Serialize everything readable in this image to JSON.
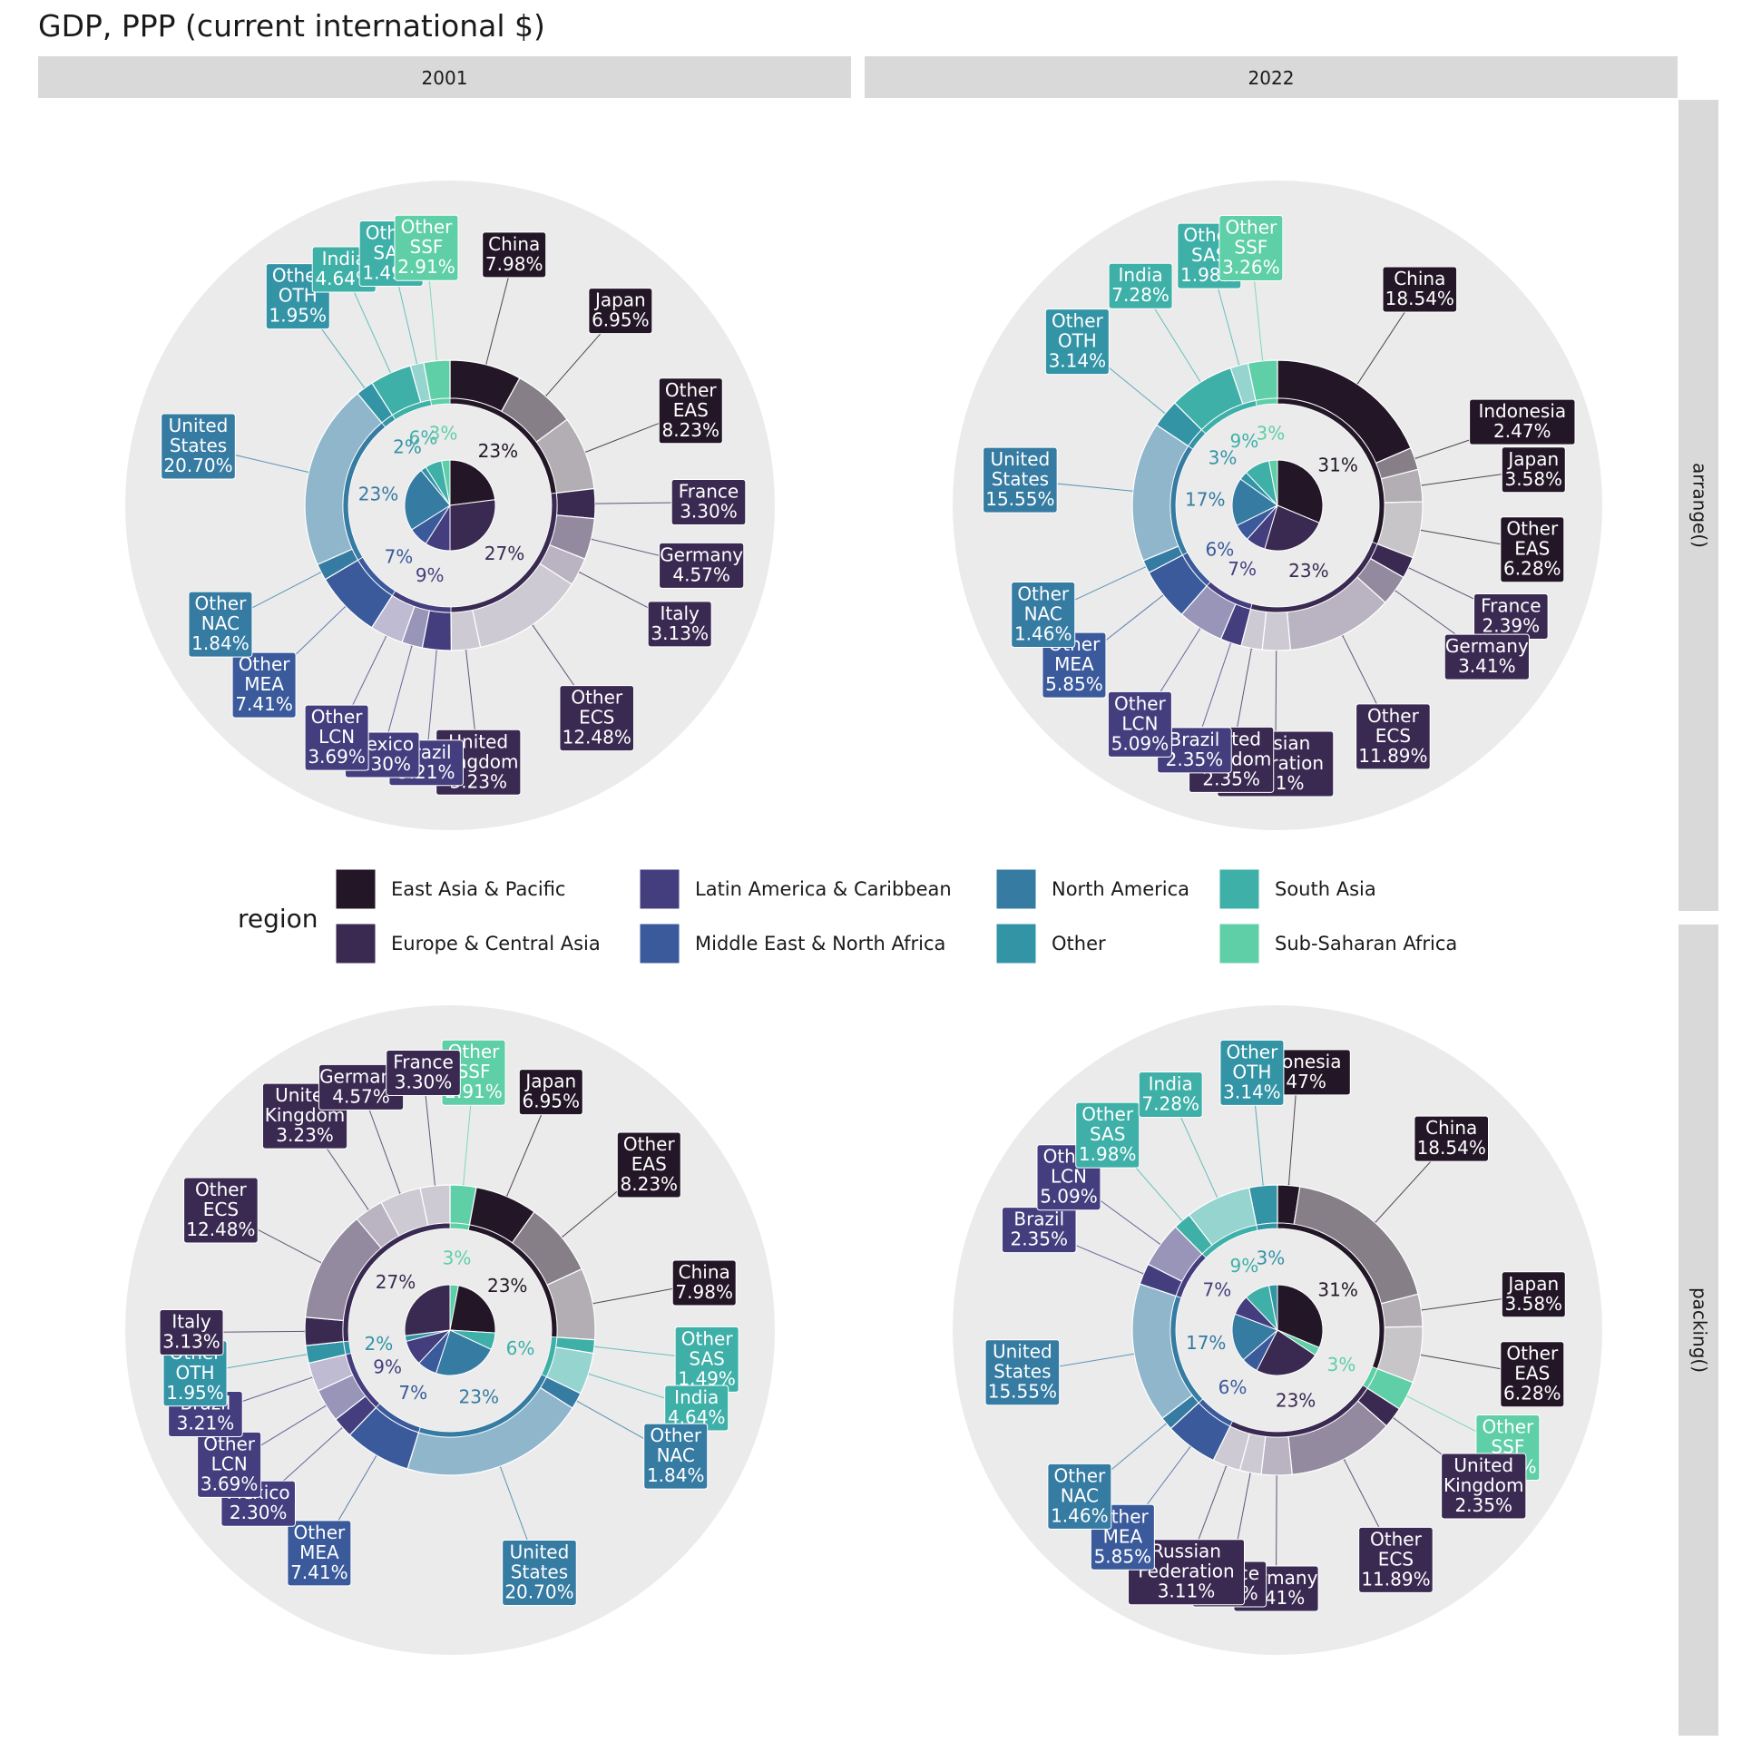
{
  "title": "GDP, PPP (current international $)",
  "legend": {
    "title": "region",
    "entries": [
      {
        "key": "EAS",
        "label": "East Asia & Pacific",
        "color": "#231727"
      },
      {
        "key": "ECS",
        "label": "Europe & Central Asia",
        "color": "#3a2a52"
      },
      {
        "key": "LCN",
        "label": "Latin America & Caribbean",
        "color": "#443e7f"
      },
      {
        "key": "MEA",
        "label": "Middle East & North Africa",
        "color": "#3a5a9b"
      },
      {
        "key": "NAC",
        "label": "North America",
        "color": "#357ba2"
      },
      {
        "key": "OTH",
        "label": "Other",
        "color": "#3394a6"
      },
      {
        "key": "SAS",
        "label": "South Asia",
        "color": "#3eb0a8"
      },
      {
        "key": "SSF",
        "label": "Sub-Saharan Africa",
        "color": "#5fcfa7"
      }
    ]
  },
  "strips": {
    "columns": [
      "2001",
      "2022"
    ],
    "rows": [
      "arrange()",
      "packing()"
    ]
  },
  "chart_data": [
    {
      "type": "pie",
      "year": "2001",
      "method": "arrange()",
      "inner": [
        {
          "region": "EAS",
          "pct": 23
        },
        {
          "region": "ECS",
          "pct": 27
        },
        {
          "region": "LCN",
          "pct": 9
        },
        {
          "region": "MEA",
          "pct": 7
        },
        {
          "region": "NAC",
          "pct": 23
        },
        {
          "region": "OTH",
          "pct": 2
        },
        {
          "region": "SAS",
          "pct": 6
        },
        {
          "region": "SSF",
          "pct": 3
        }
      ],
      "outer": [
        {
          "region": "EAS",
          "name": "China",
          "pct": 7.98
        },
        {
          "region": "EAS",
          "name": "Japan",
          "pct": 6.95
        },
        {
          "region": "EAS",
          "name": "Other EAS",
          "pct": 8.23
        },
        {
          "region": "ECS",
          "name": "France",
          "pct": 3.3
        },
        {
          "region": "ECS",
          "name": "Germany",
          "pct": 4.57
        },
        {
          "region": "ECS",
          "name": "Italy",
          "pct": 3.13
        },
        {
          "region": "ECS",
          "name": "Other ECS",
          "pct": 12.48
        },
        {
          "region": "ECS",
          "name": "United Kingdom",
          "pct": 3.23
        },
        {
          "region": "LCN",
          "name": "Brazil",
          "pct": 3.21
        },
        {
          "region": "LCN",
          "name": "Mexico",
          "pct": 2.3
        },
        {
          "region": "LCN",
          "name": "Other LCN",
          "pct": 3.69
        },
        {
          "region": "MEA",
          "name": "Other MEA",
          "pct": 7.41
        },
        {
          "region": "NAC",
          "name": "Other NAC",
          "pct": 1.84
        },
        {
          "region": "NAC",
          "name": "United States",
          "pct": 20.7
        },
        {
          "region": "OTH",
          "name": "Other OTH",
          "pct": 1.95
        },
        {
          "region": "SAS",
          "name": "India",
          "pct": 4.64
        },
        {
          "region": "SAS",
          "name": "Other SAS",
          "pct": 1.49
        },
        {
          "region": "SSF",
          "name": "Other SSF",
          "pct": 2.91
        }
      ]
    },
    {
      "type": "pie",
      "year": "2022",
      "method": "arrange()",
      "inner": [
        {
          "region": "EAS",
          "pct": 31
        },
        {
          "region": "ECS",
          "pct": 23
        },
        {
          "region": "LCN",
          "pct": 7
        },
        {
          "region": "MEA",
          "pct": 6
        },
        {
          "region": "NAC",
          "pct": 17
        },
        {
          "region": "OTH",
          "pct": 3
        },
        {
          "region": "SAS",
          "pct": 9
        },
        {
          "region": "SSF",
          "pct": 3
        }
      ],
      "outer": [
        {
          "region": "EAS",
          "name": "China",
          "pct": 18.54
        },
        {
          "region": "EAS",
          "name": "Indonesia",
          "pct": 2.47
        },
        {
          "region": "EAS",
          "name": "Japan",
          "pct": 3.58
        },
        {
          "region": "EAS",
          "name": "Other EAS",
          "pct": 6.28
        },
        {
          "region": "ECS",
          "name": "France",
          "pct": 2.39
        },
        {
          "region": "ECS",
          "name": "Germany",
          "pct": 3.41
        },
        {
          "region": "ECS",
          "name": "Other ECS",
          "pct": 11.89
        },
        {
          "region": "ECS",
          "name": "Russian Federation",
          "pct": 3.11
        },
        {
          "region": "ECS",
          "name": "United Kingdom",
          "pct": 2.35
        },
        {
          "region": "LCN",
          "name": "Brazil",
          "pct": 2.35
        },
        {
          "region": "LCN",
          "name": "Other LCN",
          "pct": 5.09
        },
        {
          "region": "MEA",
          "name": "Other MEA",
          "pct": 5.85
        },
        {
          "region": "NAC",
          "name": "Other NAC",
          "pct": 1.46
        },
        {
          "region": "NAC",
          "name": "United States",
          "pct": 15.55
        },
        {
          "region": "OTH",
          "name": "Other OTH",
          "pct": 3.14
        },
        {
          "region": "SAS",
          "name": "India",
          "pct": 7.28
        },
        {
          "region": "SAS",
          "name": "Other SAS",
          "pct": 1.98
        },
        {
          "region": "SSF",
          "name": "Other SSF",
          "pct": 3.26
        }
      ]
    },
    {
      "type": "pie",
      "year": "2001",
      "method": "packing()",
      "inner": [
        {
          "region": "EAS",
          "pct": 23
        },
        {
          "region": "ECS",
          "pct": 27
        },
        {
          "region": "LCN",
          "pct": 9
        },
        {
          "region": "MEA",
          "pct": 7
        },
        {
          "region": "NAC",
          "pct": 23
        },
        {
          "region": "OTH",
          "pct": 2
        },
        {
          "region": "SAS",
          "pct": 6
        },
        {
          "region": "SSF",
          "pct": 3
        }
      ],
      "outer": [
        {
          "region": "SSF",
          "name": "Other SSF",
          "pct": 2.91
        },
        {
          "region": "EAS",
          "name": "Japan",
          "pct": 6.95
        },
        {
          "region": "EAS",
          "name": "Other EAS",
          "pct": 8.23
        },
        {
          "region": "EAS",
          "name": "China",
          "pct": 7.98
        },
        {
          "region": "SAS",
          "name": "Other SAS",
          "pct": 1.49
        },
        {
          "region": "SAS",
          "name": "India",
          "pct": 4.64
        },
        {
          "region": "NAC",
          "name": "Other NAC",
          "pct": 1.84
        },
        {
          "region": "NAC",
          "name": "United States",
          "pct": 20.7
        },
        {
          "region": "MEA",
          "name": "Other MEA",
          "pct": 7.41
        },
        {
          "region": "LCN",
          "name": "Mexico",
          "pct": 2.3
        },
        {
          "region": "LCN",
          "name": "Other LCN",
          "pct": 3.69
        },
        {
          "region": "LCN",
          "name": "Brazil",
          "pct": 3.21
        },
        {
          "region": "OTH",
          "name": "Other OTH",
          "pct": 1.95
        },
        {
          "region": "ECS",
          "name": "Italy",
          "pct": 3.13
        },
        {
          "region": "ECS",
          "name": "Other ECS",
          "pct": 12.48
        },
        {
          "region": "ECS",
          "name": "United Kingdom",
          "pct": 3.23
        },
        {
          "region": "ECS",
          "name": "Germany",
          "pct": 4.57
        },
        {
          "region": "ECS",
          "name": "France",
          "pct": 3.3
        }
      ]
    },
    {
      "type": "pie",
      "year": "2022",
      "method": "packing()",
      "inner": [
        {
          "region": "EAS",
          "pct": 31
        },
        {
          "region": "ECS",
          "pct": 23
        },
        {
          "region": "LCN",
          "pct": 7
        },
        {
          "region": "MEA",
          "pct": 6
        },
        {
          "region": "NAC",
          "pct": 17
        },
        {
          "region": "OTH",
          "pct": 3
        },
        {
          "region": "SAS",
          "pct": 9
        },
        {
          "region": "SSF",
          "pct": 3
        }
      ],
      "outer": [
        {
          "region": "EAS",
          "name": "Indonesia",
          "pct": 2.47
        },
        {
          "region": "EAS",
          "name": "China",
          "pct": 18.54
        },
        {
          "region": "EAS",
          "name": "Japan",
          "pct": 3.58
        },
        {
          "region": "EAS",
          "name": "Other EAS",
          "pct": 6.28
        },
        {
          "region": "SSF",
          "name": "Other SSF",
          "pct": 3.26
        },
        {
          "region": "ECS",
          "name": "United Kingdom",
          "pct": 2.35
        },
        {
          "region": "ECS",
          "name": "Other ECS",
          "pct": 11.89
        },
        {
          "region": "ECS",
          "name": "Germany",
          "pct": 3.41
        },
        {
          "region": "ECS",
          "name": "France",
          "pct": 2.39
        },
        {
          "region": "ECS",
          "name": "Russian Federation",
          "pct": 3.11
        },
        {
          "region": "MEA",
          "name": "Other MEA",
          "pct": 5.85
        },
        {
          "region": "NAC",
          "name": "Other NAC",
          "pct": 1.46
        },
        {
          "region": "NAC",
          "name": "United States",
          "pct": 15.55
        },
        {
          "region": "LCN",
          "name": "Brazil",
          "pct": 2.35
        },
        {
          "region": "LCN",
          "name": "Other LCN",
          "pct": 5.09
        },
        {
          "region": "SAS",
          "name": "Other SAS",
          "pct": 1.98
        },
        {
          "region": "SAS",
          "name": "India",
          "pct": 7.28
        },
        {
          "region": "OTH",
          "name": "Other OTH",
          "pct": 3.14
        }
      ]
    }
  ]
}
